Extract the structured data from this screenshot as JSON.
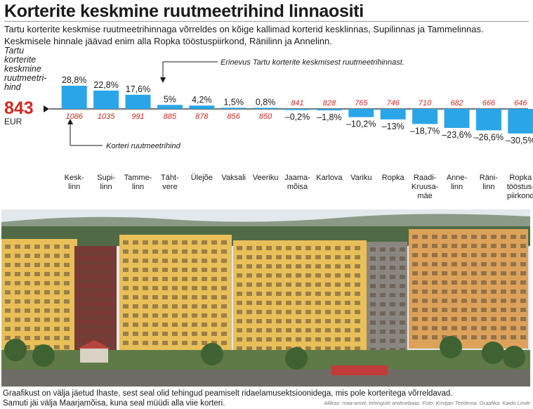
{
  "header": {
    "title": "Korterite keskmine ruutmeetrihind linnaositi",
    "intro_line1": "Tartu korterite keskmise ruutmeetrihinnaga võrreldes on kõige kallimad korterid kesklinnas, Supilinnas ja Tammelinnas.",
    "intro_line2": "Keskmisele hinnale jäävad enim alla Ropka tööstuspiirkond, Ränilinn ja Annelinn."
  },
  "chart_data": {
    "type": "bar",
    "title": "Korterite keskmine ruutmeetrihind linnaositi",
    "average": {
      "label_lines": [
        "Tartu",
        "korterite",
        "keskmine",
        "ruutmeetri-",
        "hind"
      ],
      "value": 843,
      "value_text": "843",
      "unit": "EUR"
    },
    "series": [
      {
        "name": "Erinevus Tartu korterite keskmisest ruutmeetrihinnast",
        "unit": "%",
        "values": [
          28.8,
          22.8,
          17.6,
          5,
          4.2,
          1.5,
          0.8,
          -0.2,
          -1.8,
          -10.2,
          -13,
          -18.7,
          -23.6,
          -26.6,
          -30.5
        ]
      },
      {
        "name": "Korteri ruutmeetrihind",
        "unit": "EUR",
        "values": [
          1086,
          1035,
          991,
          885,
          878,
          856,
          850,
          841,
          828,
          765,
          746,
          710,
          682,
          666,
          646
        ]
      }
    ],
    "categories": [
      "Kesklinn",
      "Supilinn",
      "Tammelinn",
      "Tähtvere",
      "Ülejõe",
      "Vaksali",
      "Veeriku",
      "Jaamamõisa",
      "Karlova",
      "Variku",
      "Ropka",
      "Raadi-Kruusamäe",
      "Annelinn",
      "Ränilinn",
      "Ropka tööstuspiirkond"
    ],
    "category_label_lines": [
      [
        "Kesk-",
        "linn"
      ],
      [
        "Supi-",
        "linn"
      ],
      [
        "Tamme-",
        "linn"
      ],
      [
        "Täht-",
        "vere"
      ],
      [
        "Ülejõe"
      ],
      [
        "Vaksali"
      ],
      [
        "Veeriku"
      ],
      [
        "Jaama-",
        "mõisa"
      ],
      [
        "Karlova"
      ],
      [
        "Variku"
      ],
      [
        "Ropka"
      ],
      [
        "Raadi-",
        "Kruusa-",
        "mäe"
      ],
      [
        "Anne-",
        "linn"
      ],
      [
        "Räni-",
        "linn"
      ],
      [
        "Ropka",
        "tööstus-",
        "piirkond"
      ]
    ],
    "pct_labels": [
      "28,8%",
      "22,8%",
      "17,6%",
      "5%",
      "4,2%",
      "1,5%",
      "0,8%",
      "–0,2%",
      "–1,8%",
      "–10,2%",
      "–13%",
      "–18,7%",
      "–23,6%",
      "–26,6%",
      "–30,5%"
    ],
    "annotations": {
      "difference": "Erinevus Tartu korterite keskmisest ruutmeetrihinnast.",
      "price": "Korteri ruutmeetrihind"
    },
    "ylim": [
      -30.5,
      28.8
    ],
    "colors": {
      "bar": "#2aa6e8",
      "price_text": "#d42a1e",
      "average_text": "#d42a1e",
      "baseline": "#222222"
    }
  },
  "photo": {
    "colors": {
      "sky": "#e3e8ec",
      "forest": "#4f6a45",
      "yellow": "#e8bf58",
      "brick": "#7a3a33",
      "grey": "#8b8680",
      "street": "#6e6c66"
    }
  },
  "footer": {
    "line1": "Graafikust on välja jäetud Ihaste, sest seal olid tehingud peamiselt ridaelamusektsioonidega, mis pole korteritega võrreldavad.",
    "line2": "Samuti jäi välja Maarjamõisa, kuna seal müüdi alla viie korteri.",
    "credits": "Allikas: maa-amet, tehingute andmebaas. Foto: Kristjan Teedema. Graafika: Kaido Linde"
  }
}
